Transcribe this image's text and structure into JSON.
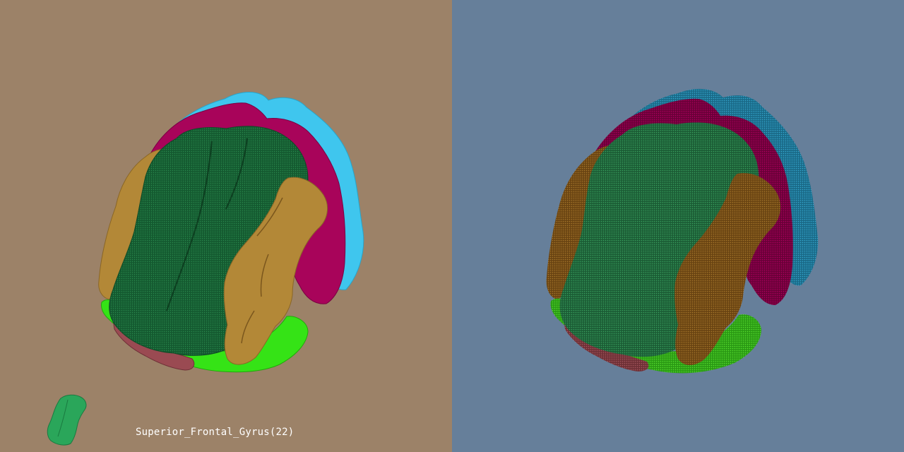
{
  "colors": {
    "left_background": "#9c8268",
    "right_background": "#667f9a",
    "label_text": "#ffffff",
    "superior_frontal_gyrus": "#135a2f",
    "superior_frontal_gyrus_highlight": "#2e9a57",
    "thumbnail_fill": "#2aa65a",
    "magenta_gyrus": "#a8045a",
    "cyan_gyrus": "#3fc6ee",
    "tan_gyrus": "#b38837",
    "lime_gyrus": "#35e316",
    "rose_gyrus": "#9a4a52",
    "right_magenta_gyrus": "#8a0048",
    "right_cyan_gyrus": "#1f7fa0",
    "right_tan_gyrus": "#7c5118",
    "right_lime_gyrus": "#33b31a"
  },
  "viewer": {
    "selected_structure_label": "Superior_Frontal_Gyrus(22)"
  },
  "icons": {
    "thumbnail": "selected-structure-thumbnail-icon"
  }
}
